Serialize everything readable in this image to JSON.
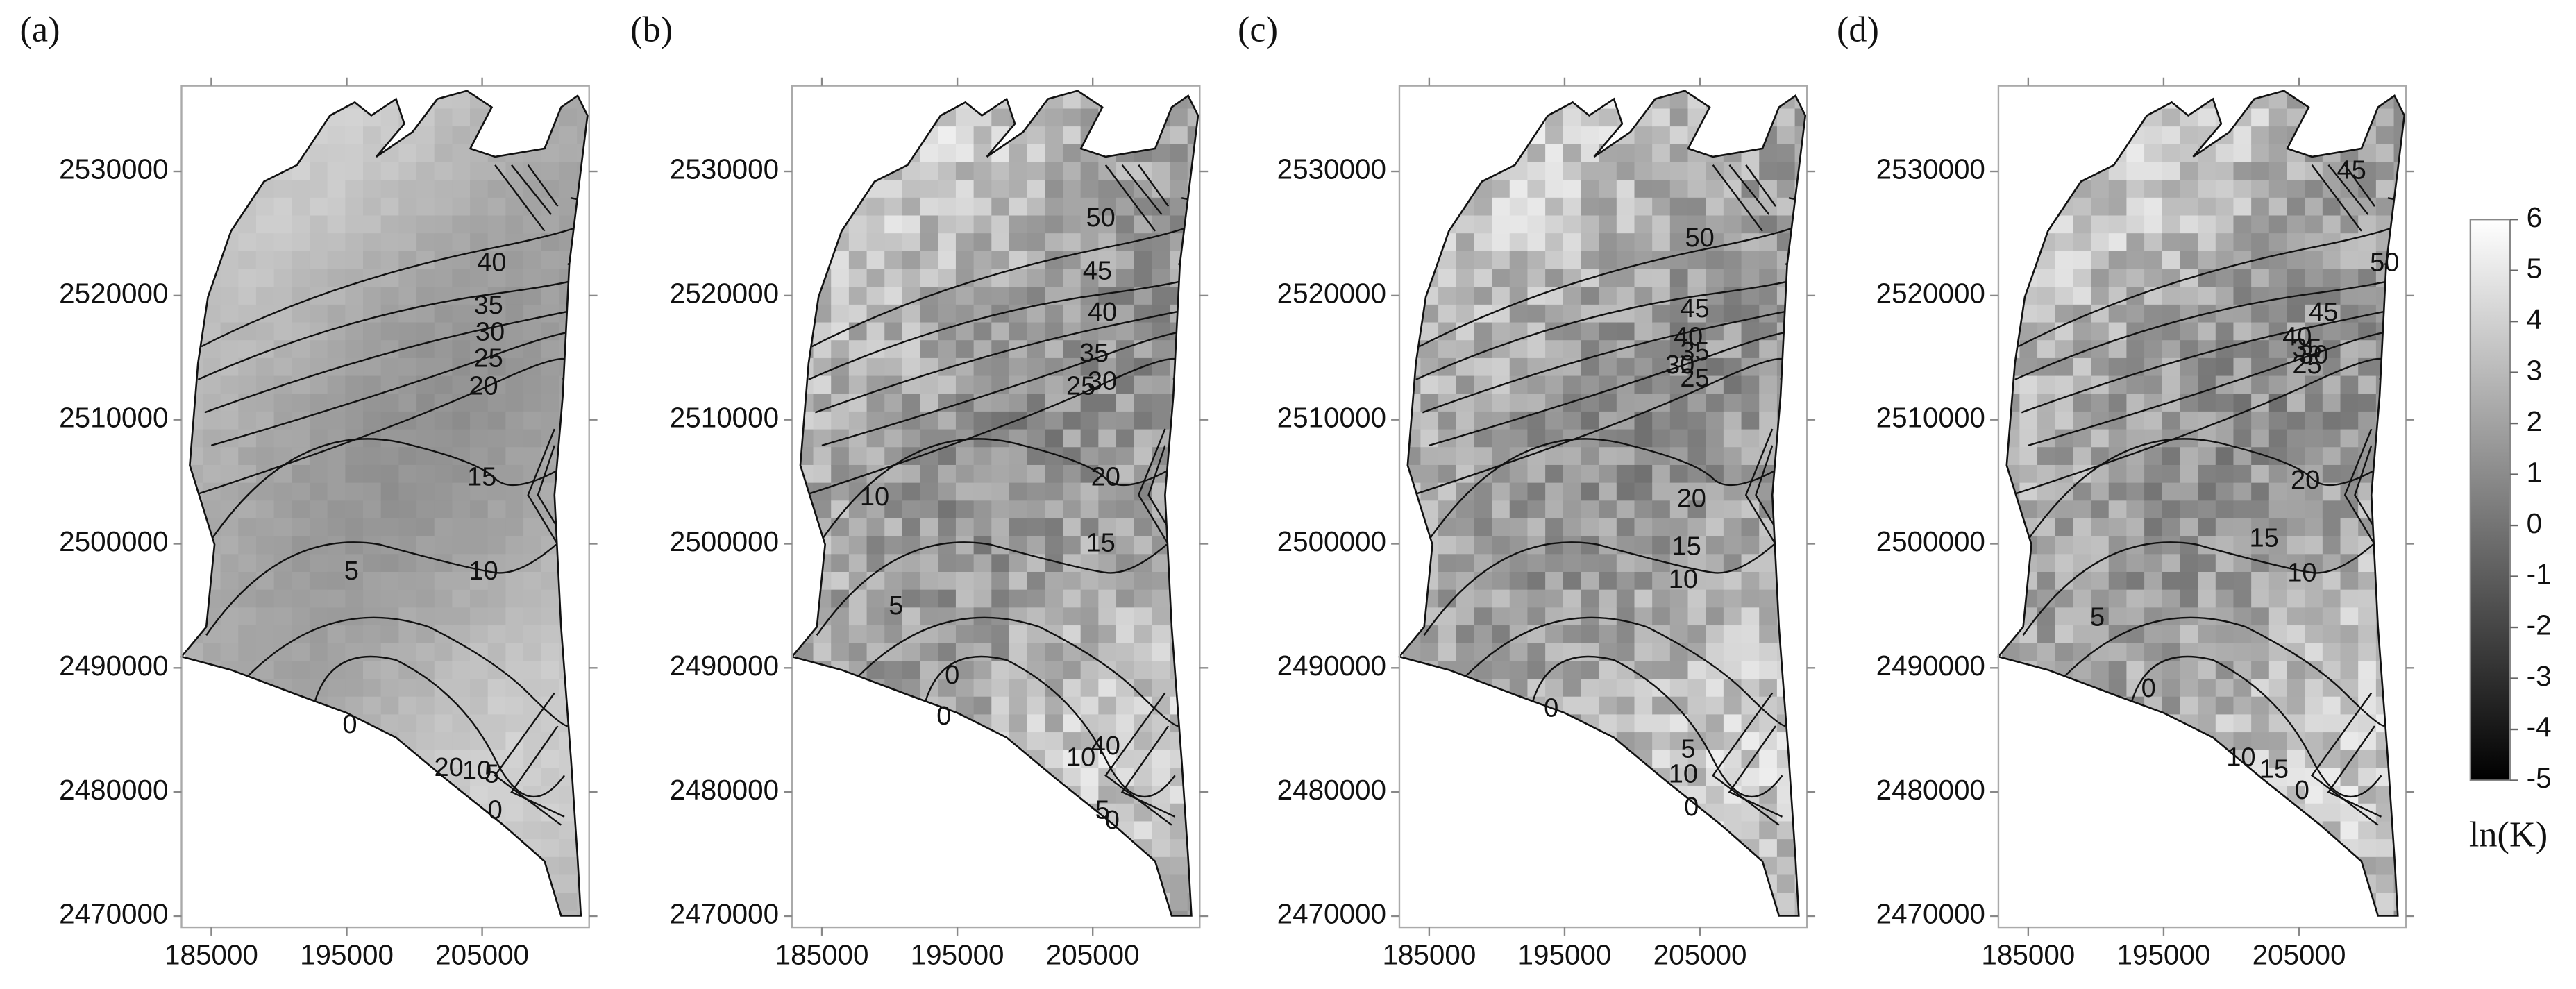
{
  "panels": [
    {
      "label": "(a)",
      "contour_labels": [
        "40",
        "35",
        "30",
        "25",
        "20",
        "15",
        "10",
        "5",
        "0",
        "20",
        "10",
        "5",
        "0"
      ]
    },
    {
      "label": "(b)",
      "contour_labels": [
        "50",
        "45",
        "40",
        "35",
        "30",
        "25",
        "20",
        "15",
        "10",
        "5",
        "0",
        "0",
        "10",
        "40",
        "5",
        "0"
      ]
    },
    {
      "label": "(c)",
      "contour_labels": [
        "50",
        "45",
        "40",
        "35",
        "30",
        "25",
        "20",
        "15",
        "10",
        "0",
        "10",
        "5",
        "0"
      ]
    },
    {
      "label": "(d)",
      "contour_labels": [
        "45",
        "50",
        "45",
        "40",
        "35",
        "30",
        "25",
        "20",
        "15",
        "10",
        "5",
        "0",
        "10",
        "15",
        "0"
      ]
    }
  ],
  "axes": {
    "xlim": [
      182800,
      212900
    ],
    "ylim": [
      2469100,
      2536900
    ],
    "xticks": [
      185000,
      195000,
      205000
    ],
    "yticks": [
      2470000,
      2480000,
      2490000,
      2500000,
      2510000,
      2520000,
      2530000
    ]
  },
  "colorbar": {
    "label": "ln(K)",
    "lim": [
      -5,
      6
    ],
    "ticks": [
      6,
      5,
      4,
      3,
      2,
      1,
      0,
      -1,
      -2,
      -3,
      -4,
      -5
    ]
  }
}
